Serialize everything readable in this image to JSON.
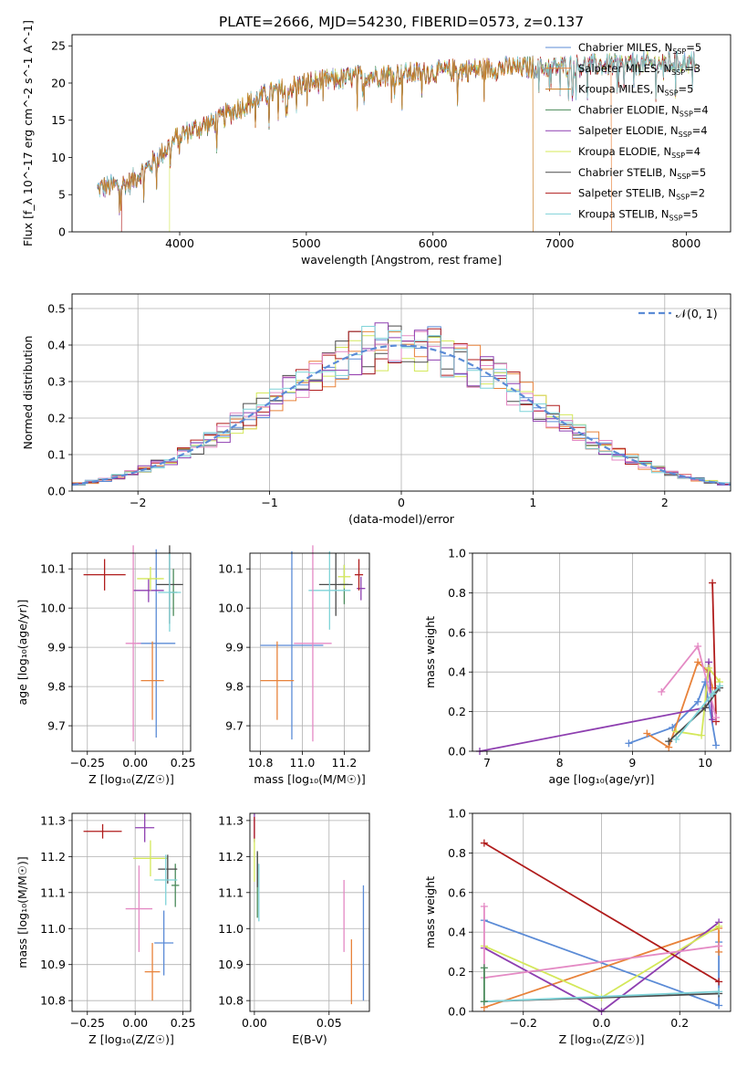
{
  "title": "PLATE=2666, MJD=54230, FIBERID=0573, z=0.137",
  "models": [
    {
      "name": "Chabrier MILES, N$_{SSP}$=5",
      "label": "Chabrier MILES, N",
      "sub": "SSP",
      "suffix": "=5",
      "color": "#5b8bd6"
    },
    {
      "name": "Salpeter MILES, N$_{SSP}$=3",
      "label": "Salpeter MILES, N",
      "sub": "SSP",
      "suffix": "=3",
      "color": "#e8823a"
    },
    {
      "name": "Kroupa MILES, N$_{SSP}$=5",
      "label": "Kroupa MILES, N",
      "sub": "SSP",
      "suffix": "=5",
      "color": "#c87a1c"
    },
    {
      "name": "Chabrier ELODIE, N$_{SSP}$=4",
      "label": "Chabrier ELODIE, N",
      "sub": "SSP",
      "suffix": "=4",
      "color": "#4a8a5a"
    },
    {
      "name": "Salpeter ELODIE, N$_{SSP}$=4",
      "label": "Salpeter ELODIE, N",
      "sub": "SSP",
      "suffix": "=4",
      "color": "#8e3fb0"
    },
    {
      "name": "Kroupa ELODIE, N$_{SSP}$=4",
      "label": "Kroupa ELODIE, N",
      "sub": "SSP",
      "suffix": "=4",
      "color": "#d4e85a"
    },
    {
      "name": "Chabrier STELIB, N$_{SSP}$=5",
      "label": "Chabrier STELIB, N",
      "sub": "SSP",
      "suffix": "=5",
      "color": "#4a4a4a"
    },
    {
      "name": "Salpeter STELIB, N$_{SSP}$=2",
      "label": "Salpeter STELIB, N",
      "sub": "SSP",
      "suffix": "=2",
      "color": "#b01c1c"
    },
    {
      "name": "Kroupa STELIB, N$_{SSP}$=5",
      "label": "Kroupa STELIB, N",
      "sub": "SSP",
      "suffix": "=5",
      "color": "#7fd3d8"
    }
  ],
  "chart_data": [
    {
      "type": "line",
      "id": "spectrum",
      "xlabel": "wavelength [Angstrom, rest frame]",
      "ylabel": "Flux [f_λ 10^-17 erg cm^-2 s^-1 A^-1]",
      "xlim": [
        3150,
        8350
      ],
      "ylim": [
        0,
        26.5
      ],
      "xticks": [
        4000,
        5000,
        6000,
        7000,
        8000
      ],
      "yticks": [
        0,
        5,
        10,
        15,
        20,
        25
      ],
      "grid": false,
      "legend": "top-right",
      "continuum": [
        [
          3350,
          5.8
        ],
        [
          3600,
          6.5
        ],
        [
          3800,
          9.5
        ],
        [
          4000,
          13.0
        ],
        [
          4300,
          15.0
        ],
        [
          4500,
          17.0
        ],
        [
          4700,
          18.5
        ],
        [
          5000,
          20.0
        ],
        [
          5500,
          21.0
        ],
        [
          6000,
          21.5
        ],
        [
          6500,
          22.0
        ],
        [
          7000,
          22.2
        ],
        [
          7500,
          22.5
        ],
        [
          8000,
          22.8
        ],
        [
          8080,
          22.8
        ]
      ],
      "drops": [
        {
          "model": 7,
          "x": 3540
        },
        {
          "model": 5,
          "x": 3920
        },
        {
          "model": 2,
          "x": 6790
        },
        {
          "model": 1,
          "x": 7410
        }
      ]
    },
    {
      "type": "histogram",
      "id": "residuals",
      "xlabel": "(data-model)/error",
      "ylabel": "Normed distribution",
      "xlim": [
        -2.5,
        2.5
      ],
      "ylim": [
        0,
        0.54
      ],
      "xticks": [
        -2,
        -1,
        0,
        1,
        2
      ],
      "yticks": [
        0,
        0.1,
        0.2,
        0.3,
        0.4,
        0.5
      ],
      "bin_width": 0.1,
      "grid": true,
      "legend": "top-right",
      "reference": {
        "name": "𝒩(0, 1)",
        "color": "#5b8bd6"
      }
    },
    {
      "type": "errorbar",
      "id": "age-vs-Z",
      "xlabel": "Z [log₁₀(Z/Z☉)]",
      "ylabel": "age  [log₁₀(age/yr)]",
      "xlim": [
        -0.33,
        0.29
      ],
      "ylim": [
        9.635,
        10.14
      ],
      "xticks": [
        -0.25,
        0.0,
        0.25
      ],
      "yticks": [
        9.7,
        9.8,
        9.9,
        10.0,
        10.1
      ],
      "grid": true,
      "points": [
        {
          "model": 0,
          "x": 0.11,
          "y": 9.91,
          "xerr": 0.1,
          "yerr": 0.24
        },
        {
          "model": 1,
          "x": 0.09,
          "y": 9.815,
          "xerr": 0.06,
          "yerr": 0.1
        },
        {
          "model": 3,
          "x": 0.2,
          "y": 10.04,
          "xerr": 0.02,
          "yerr": 0.06
        },
        {
          "model": 4,
          "x": 0.07,
          "y": 10.045,
          "xerr": 0.08,
          "yerr": 0.03
        },
        {
          "model": 5,
          "x": 0.08,
          "y": 10.075,
          "xerr": 0.07,
          "yerr": 0.03
        },
        {
          "model": 6,
          "x": 0.18,
          "y": 10.06,
          "xerr": 0.07,
          "yerr": 0.1
        },
        {
          "model": 7,
          "x": -0.16,
          "y": 10.085,
          "xerr": 0.11,
          "yerr": 0.04
        },
        {
          "model": 8,
          "x": 0.18,
          "y": 10.04,
          "xerr": 0.06,
          "yerr": 0.1
        },
        {
          "model": 9,
          "x": -0.01,
          "y": 9.91,
          "xerr": 0.04,
          "yerr": 0.25
        }
      ]
    },
    {
      "type": "errorbar",
      "id": "age-vs-mass",
      "xlabel": "mass [log₁₀(M/M☉)]",
      "ylabel": "",
      "xlim": [
        10.75,
        11.32
      ],
      "ylim": [
        9.635,
        10.14
      ],
      "xticks": [
        10.8,
        11.0,
        11.2
      ],
      "yticks": [
        9.7,
        9.8,
        9.9,
        10.0,
        10.1
      ],
      "grid": true,
      "points": [
        {
          "model": 0,
          "x": 10.95,
          "y": 9.905,
          "xerr": 0.15,
          "yerr": 0.24
        },
        {
          "model": 1,
          "x": 10.88,
          "y": 9.815,
          "xerr": 0.08,
          "yerr": 0.1
        },
        {
          "model": 3,
          "x": 11.2,
          "y": 10.06,
          "xerr": 0.02,
          "yerr": 0.05
        },
        {
          "model": 4,
          "x": 11.28,
          "y": 10.05,
          "xerr": 0.02,
          "yerr": 0.03
        },
        {
          "model": 5,
          "x": 11.2,
          "y": 10.08,
          "xerr": 0.03,
          "yerr": 0.03
        },
        {
          "model": 6,
          "x": 11.16,
          "y": 10.06,
          "xerr": 0.08,
          "yerr": 0.08
        },
        {
          "model": 7,
          "x": 11.27,
          "y": 10.085,
          "xerr": 0.02,
          "yerr": 0.04
        },
        {
          "model": 8,
          "x": 11.13,
          "y": 10.045,
          "xerr": 0.1,
          "yerr": 0.1
        },
        {
          "model": 9,
          "x": 11.05,
          "y": 9.91,
          "xerr": 0.09,
          "yerr": 0.25
        }
      ]
    },
    {
      "type": "line",
      "id": "mass-weight-vs-age",
      "xlabel": "age  [log₁₀(age/yr)]",
      "ylabel": "mass weight",
      "xlim": [
        6.8,
        10.35
      ],
      "ylim": [
        0,
        1.0
      ],
      "xticks": [
        7,
        8,
        9,
        10
      ],
      "yticks": [
        0.0,
        0.2,
        0.4,
        0.6,
        0.8,
        1.0
      ],
      "grid": true,
      "series": [
        {
          "model": 0,
          "x": [
            8.95,
            9.55,
            9.9,
            10.0,
            10.15
          ],
          "y": [
            0.04,
            0.12,
            0.25,
            0.35,
            0.03
          ]
        },
        {
          "model": 1,
          "x": [
            9.2,
            9.5,
            9.9,
            10.05,
            10.1
          ],
          "y": [
            0.09,
            0.02,
            0.45,
            0.4,
            0.32
          ]
        },
        {
          "model": 4,
          "x": [
            6.9,
            10.0,
            10.05,
            10.1
          ],
          "y": [
            0.0,
            0.22,
            0.45,
            0.16
          ]
        },
        {
          "model": 5,
          "x": [
            9.6,
            9.95,
            10.05,
            10.2
          ],
          "y": [
            0.1,
            0.08,
            0.42,
            0.35
          ]
        },
        {
          "model": 7,
          "x": [
            10.1,
            10.15
          ],
          "y": [
            0.85,
            0.15
          ]
        },
        {
          "model": 9,
          "x": [
            9.4,
            9.9,
            10.15
          ],
          "y": [
            0.3,
            0.53,
            0.17
          ]
        },
        {
          "model": 6,
          "x": [
            9.5,
            10.0,
            10.2
          ],
          "y": [
            0.05,
            0.22,
            0.32
          ]
        },
        {
          "model": 8,
          "x": [
            9.6,
            10.1,
            10.2
          ],
          "y": [
            0.06,
            0.29,
            0.33
          ]
        }
      ]
    },
    {
      "type": "errorbar",
      "id": "mass-vs-Z",
      "xlabel": "Z [log₁₀(Z/Z☉)]",
      "ylabel": "mass [log₁₀(M/M☉)]",
      "xlim": [
        -0.33,
        0.29
      ],
      "ylim": [
        10.77,
        11.32
      ],
      "xticks": [
        -0.25,
        0.0,
        0.25
      ],
      "yticks": [
        10.8,
        10.9,
        11.0,
        11.1,
        11.2,
        11.3
      ],
      "grid": true,
      "points": [
        {
          "model": 0,
          "x": 0.15,
          "y": 10.96,
          "xerr": 0.05,
          "yerr": 0.09
        },
        {
          "model": 1,
          "x": 0.09,
          "y": 10.88,
          "xerr": 0.04,
          "yerr": 0.08
        },
        {
          "model": 3,
          "x": 0.21,
          "y": 11.12,
          "xerr": 0.02,
          "yerr": 0.06
        },
        {
          "model": 4,
          "x": 0.05,
          "y": 11.28,
          "xerr": 0.05,
          "yerr": 0.04
        },
        {
          "model": 5,
          "x": 0.08,
          "y": 11.195,
          "xerr": 0.09,
          "yerr": 0.05
        },
        {
          "model": 6,
          "x": 0.17,
          "y": 11.165,
          "xerr": 0.05,
          "yerr": 0.04
        },
        {
          "model": 7,
          "x": -0.17,
          "y": 11.27,
          "xerr": 0.1,
          "yerr": 0.02
        },
        {
          "model": 8,
          "x": 0.16,
          "y": 11.135,
          "xerr": 0.06,
          "yerr": 0.07
        },
        {
          "model": 9,
          "x": 0.02,
          "y": 11.055,
          "xerr": 0.07,
          "yerr": 0.12
        }
      ]
    },
    {
      "type": "errorbar",
      "id": "mass-vs-EBV",
      "xlabel": "E(B-V)",
      "ylabel": "",
      "xlim": [
        -0.003,
        0.077
      ],
      "ylim": [
        10.77,
        11.32
      ],
      "xticks": [
        0.0,
        0.05
      ],
      "yticks": [
        10.8,
        10.9,
        11.0,
        11.1,
        11.2,
        11.3
      ],
      "grid": true,
      "points": [
        {
          "model": 0,
          "x": 0.073,
          "y": 10.96,
          "xerr": 0.0,
          "yerr": 0.16
        },
        {
          "model": 1,
          "x": 0.065,
          "y": 10.88,
          "xerr": 0.0,
          "yerr": 0.09
        },
        {
          "model": 3,
          "x": 0.002,
          "y": 11.12,
          "xerr": 0.0,
          "yerr": 0.09
        },
        {
          "model": 4,
          "x": 0.0,
          "y": 11.28,
          "xerr": 0.0,
          "yerr": 0.04
        },
        {
          "model": 5,
          "x": 0.0,
          "y": 11.19,
          "xerr": 0.0,
          "yerr": 0.06
        },
        {
          "model": 6,
          "x": 0.002,
          "y": 11.165,
          "xerr": 0.0,
          "yerr": 0.05
        },
        {
          "model": 7,
          "x": 0.0,
          "y": 11.28,
          "xerr": 0.0,
          "yerr": 0.03
        },
        {
          "model": 8,
          "x": 0.003,
          "y": 11.1,
          "xerr": 0.0,
          "yerr": 0.08
        },
        {
          "model": 9,
          "x": 0.06,
          "y": 11.035,
          "xerr": 0.0,
          "yerr": 0.1
        }
      ]
    },
    {
      "type": "line",
      "id": "mass-weight-vs-Z",
      "xlabel": "Z [log₁₀(Z/Z☉)]",
      "ylabel": "mass weight",
      "xlim": [
        -0.33,
        0.33
      ],
      "ylim": [
        0,
        1.0
      ],
      "xticks": [
        -0.2,
        0.0,
        0.2
      ],
      "yticks": [
        0.0,
        0.2,
        0.4,
        0.6,
        0.8,
        1.0
      ],
      "grid": true,
      "series": [
        {
          "model": 0,
          "x": [
            -0.3,
            0.3,
            0.3
          ],
          "y": [
            0.46,
            0.03,
            0.35
          ]
        },
        {
          "model": 1,
          "x": [
            -0.3,
            0.3,
            0.3
          ],
          "y": [
            0.02,
            0.42,
            0.3
          ]
        },
        {
          "model": 4,
          "x": [
            -0.3,
            0.0,
            0.3
          ],
          "y": [
            0.32,
            0.0,
            0.45
          ]
        },
        {
          "model": 5,
          "x": [
            -0.3,
            0.0,
            0.3
          ],
          "y": [
            0.33,
            0.07,
            0.43
          ]
        },
        {
          "model": 7,
          "x": [
            -0.3,
            0.3
          ],
          "y": [
            0.85,
            0.15
          ]
        },
        {
          "model": 9,
          "x": [
            -0.3,
            -0.3,
            0.3
          ],
          "y": [
            0.53,
            0.17,
            0.33
          ]
        },
        {
          "model": 6,
          "x": [
            -0.3,
            0.3
          ],
          "y": [
            0.05,
            0.09
          ]
        },
        {
          "model": 8,
          "x": [
            -0.3,
            0.3
          ],
          "y": [
            0.05,
            0.1
          ]
        },
        {
          "model": 3,
          "x": [
            -0.3,
            -0.3
          ],
          "y": [
            0.22,
            0.05
          ]
        }
      ]
    }
  ]
}
